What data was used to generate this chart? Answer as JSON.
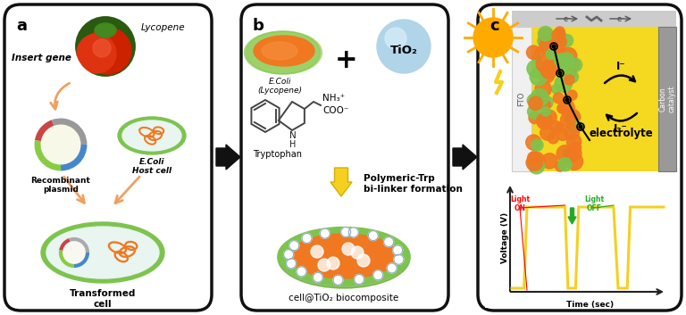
{
  "fig_width": 7.68,
  "fig_height": 3.53,
  "bg_color": "#ffffff",
  "panel_border_color": "#111111",
  "orange_arrow": "#f0a060",
  "panel_a_label": "a",
  "panel_b_label": "b",
  "panel_c_label": "c",
  "insert_gene": "Insert gene",
  "lycopene": "Lycopene",
  "recombinant": "Recombinant\nplasmid",
  "ecoli_host": "E.Coli\nHost cell",
  "transformed": "Transformed\ncell",
  "ecoli_lyc": "E.Coli\n(Lycopene)",
  "tio2": "TiO₂",
  "tryptophan": "Tryptophan",
  "nh3": "NH₃⁺",
  "coo": "COO⁻",
  "arrow_text1": "Polymeric-Trp",
  "arrow_text2": "bi-linker formation",
  "biocomposite": "cell@TiO₂ biocomposite",
  "fto": "FTO",
  "carbon": "Carbon\ncatalyst",
  "electrolyte": "electrolyte",
  "i_minus": "I⁻",
  "i3_minus": "I₃⁻",
  "light_on": "Light\nON",
  "light_off": "Light\nOFF",
  "voltage": "Voltage (V)",
  "time": "Time (sec)",
  "e_minus": "e⁻",
  "green_cell": "#7dc44e",
  "orange_cell": "#f07820",
  "light_blue_cell": "#d8eff5",
  "tio2_blue": "#b0d4e8",
  "yellow_bg": "#f5d820",
  "gray_carbon": "#999999"
}
